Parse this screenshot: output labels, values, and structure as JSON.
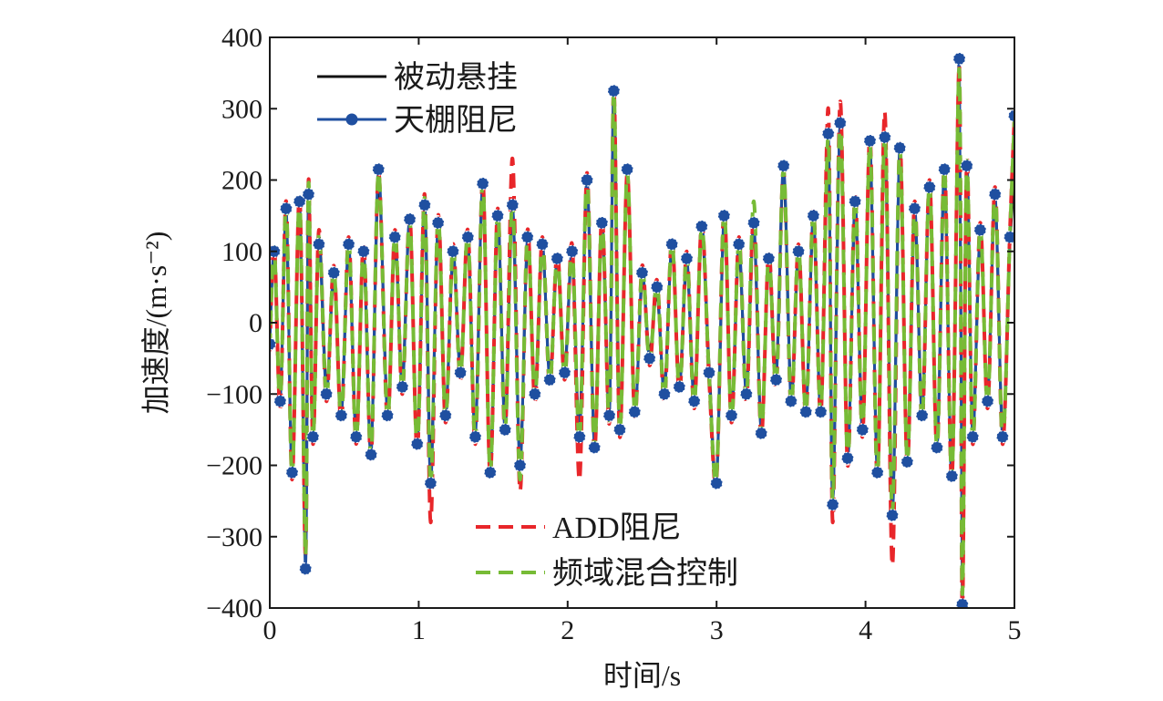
{
  "chart_data": {
    "type": "line",
    "xlabel": "时间/s",
    "ylabel": "加速度/(m·s⁻²)",
    "xlim": [
      0,
      5
    ],
    "ylim": [
      -400,
      400
    ],
    "x_ticks": [
      "0",
      "1",
      "2",
      "3",
      "4",
      "5"
    ],
    "y_ticks": [
      "400",
      "300",
      "200",
      "100",
      "0",
      "−100",
      "−200",
      "−300",
      "−400"
    ],
    "grid": false,
    "legend": [
      {
        "placement": "top-left",
        "entries": [
          "被动悬挂",
          "天棚阻尼"
        ]
      },
      {
        "placement": "bottom-center",
        "entries": [
          "ADD阻尼",
          "频域混合控制"
        ]
      }
    ],
    "colors": {
      "被动悬挂": "#111111",
      "天棚阻尼": "#1f4fa0",
      "ADD阻尼": "#e8262a",
      "频域混合控制": "#77bb36"
    },
    "sampled_peaks": {
      "x": [
        0.0,
        0.03,
        0.07,
        0.11,
        0.15,
        0.2,
        0.24,
        0.26,
        0.29,
        0.33,
        0.38,
        0.43,
        0.48,
        0.53,
        0.58,
        0.63,
        0.68,
        0.73,
        0.79,
        0.84,
        0.89,
        0.94,
        0.99,
        1.04,
        1.08,
        1.13,
        1.18,
        1.23,
        1.28,
        1.33,
        1.38,
        1.43,
        1.48,
        1.53,
        1.58,
        1.63,
        1.68,
        1.73,
        1.78,
        1.83,
        1.88,
        1.93,
        1.98,
        2.03,
        2.08,
        2.13,
        2.18,
        2.23,
        2.28,
        2.31,
        2.35,
        2.4,
        2.45,
        2.5,
        2.55,
        2.6,
        2.65,
        2.7,
        2.75,
        2.8,
        2.85,
        2.9,
        2.95,
        3.0,
        3.05,
        3.1,
        3.15,
        3.2,
        3.25,
        3.3,
        3.35,
        3.4,
        3.45,
        3.5,
        3.55,
        3.6,
        3.65,
        3.7,
        3.75,
        3.78,
        3.83,
        3.88,
        3.93,
        3.98,
        4.03,
        4.08,
        4.13,
        4.18,
        4.23,
        4.28,
        4.33,
        4.38,
        4.43,
        4.48,
        4.53,
        4.58,
        4.63,
        4.65,
        4.68,
        4.72,
        4.77,
        4.82,
        4.87,
        4.92,
        4.97,
        5.0
      ],
      "被动悬挂": [
        -20,
        90,
        -100,
        150,
        -200,
        160,
        -320,
        190,
        -150,
        120,
        -90,
        60,
        -120,
        100,
        -150,
        90,
        -180,
        200,
        -120,
        110,
        -80,
        140,
        -160,
        170,
        -200,
        130,
        -120,
        90,
        -60,
        110,
        -150,
        190,
        -200,
        150,
        -140,
        160,
        -190,
        110,
        -90,
        100,
        -70,
        80,
        -60,
        90,
        -150,
        200,
        -170,
        130,
        -120,
        320,
        -140,
        200,
        -120,
        60,
        -40,
        40,
        -90,
        100,
        -80,
        80,
        -100,
        120,
        -60,
        -220,
        140,
        -120,
        100,
        -90,
        130,
        -150,
        80,
        -70,
        210,
        -100,
        90,
        -120,
        140,
        -120,
        260,
        -250,
        280,
        -180,
        160,
        -140,
        230,
        -200,
        260,
        -260,
        240,
        -190,
        150,
        -120,
        190,
        -170,
        200,
        -200,
        350,
        -370,
        210,
        -150,
        120,
        -100,
        170,
        -150,
        110,
        200
      ],
      "天棚阻尼": [
        -30,
        100,
        -110,
        160,
        -210,
        170,
        -345,
        180,
        -160,
        110,
        -100,
        70,
        -130,
        110,
        -160,
        100,
        -185,
        215,
        -130,
        120,
        -90,
        145,
        -170,
        165,
        -225,
        140,
        -130,
        100,
        -70,
        120,
        -160,
        195,
        -210,
        150,
        -150,
        165,
        -200,
        120,
        -100,
        110,
        -80,
        90,
        -70,
        100,
        -160,
        200,
        -175,
        140,
        -130,
        325,
        -150,
        215,
        -125,
        70,
        -50,
        50,
        -100,
        110,
        -90,
        90,
        -110,
        135,
        -70,
        -225,
        150,
        -130,
        110,
        -100,
        140,
        -155,
        90,
        -80,
        220,
        -110,
        100,
        -125,
        150,
        -125,
        265,
        -255,
        280,
        -190,
        170,
        -150,
        255,
        -210,
        260,
        -270,
        245,
        -195,
        160,
        -130,
        190,
        -175,
        215,
        -215,
        370,
        -395,
        220,
        -160,
        130,
        -110,
        180,
        -160,
        120,
        290
      ],
      "ADD阻尼": [
        -40,
        110,
        -120,
        170,
        -220,
        180,
        -330,
        200,
        -170,
        130,
        -110,
        80,
        -140,
        120,
        -170,
        110,
        -190,
        210,
        -140,
        130,
        -100,
        150,
        -180,
        180,
        -280,
        150,
        -140,
        110,
        -80,
        130,
        -170,
        200,
        -215,
        160,
        -155,
        230,
        -235,
        130,
        -110,
        120,
        -90,
        100,
        -80,
        110,
        -220,
        210,
        -180,
        150,
        -140,
        330,
        -160,
        210,
        -130,
        80,
        -60,
        60,
        -110,
        120,
        -100,
        100,
        -120,
        140,
        -80,
        -220,
        160,
        -140,
        120,
        -110,
        150,
        -160,
        100,
        -90,
        215,
        -120,
        110,
        -130,
        160,
        -130,
        300,
        -280,
        310,
        -200,
        180,
        -160,
        260,
        -220,
        295,
        -340,
        250,
        -200,
        170,
        -140,
        200,
        -180,
        220,
        -220,
        360,
        -405,
        230,
        -170,
        140,
        -120,
        190,
        -170,
        130,
        290
      ],
      "频域混合控制": [
        -35,
        105,
        -115,
        165,
        -215,
        175,
        -325,
        195,
        -165,
        125,
        -105,
        75,
        -135,
        115,
        -165,
        105,
        -185,
        210,
        -135,
        125,
        -95,
        145,
        -175,
        175,
        -230,
        145,
        -135,
        105,
        -75,
        125,
        -165,
        195,
        -210,
        155,
        -150,
        170,
        -220,
        125,
        -105,
        115,
        -85,
        95,
        -75,
        105,
        -165,
        205,
        -175,
        145,
        -135,
        325,
        -155,
        210,
        -125,
        75,
        -55,
        55,
        -105,
        115,
        -95,
        95,
        -115,
        135,
        -75,
        -215,
        155,
        -135,
        115,
        -105,
        170,
        -155,
        95,
        -85,
        215,
        -115,
        105,
        -125,
        155,
        -125,
        260,
        -250,
        285,
        -195,
        175,
        -155,
        250,
        -215,
        265,
        -265,
        245,
        -195,
        165,
        -135,
        195,
        -175,
        215,
        -215,
        355,
        -380,
        225,
        -165,
        135,
        -115,
        185,
        -165,
        125,
        285
      ]
    }
  }
}
